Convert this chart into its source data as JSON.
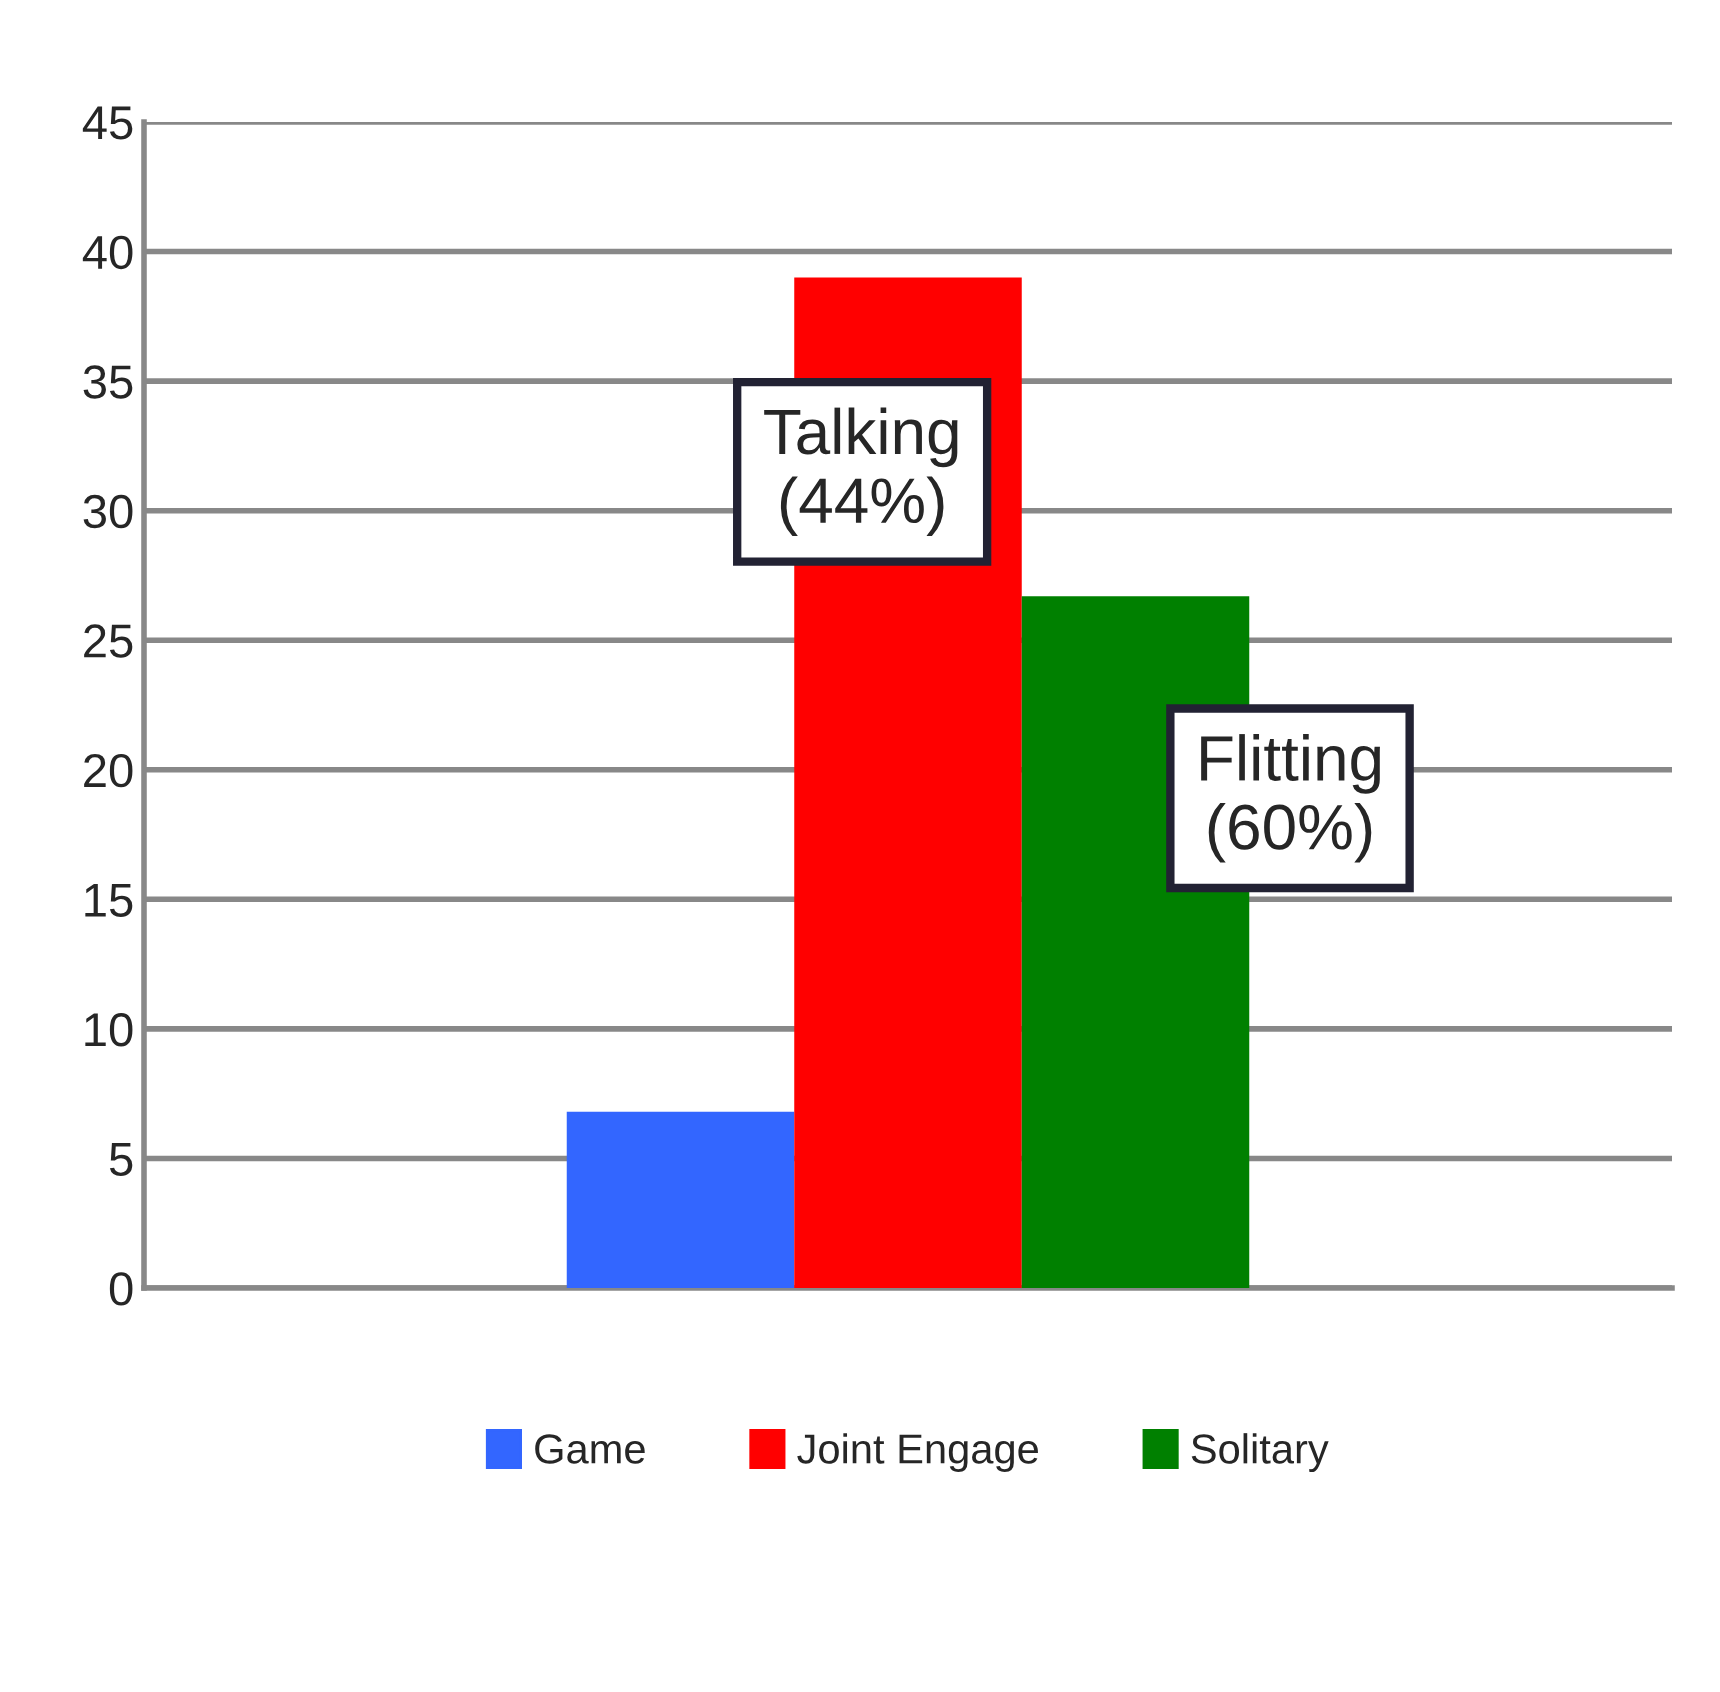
{
  "chart_data": {
    "type": "bar",
    "categories": [
      null
    ],
    "series": [
      {
        "name": "Game",
        "color": "#3366ff",
        "values": [
          6.8
        ]
      },
      {
        "name": "Joint Engage",
        "color": "#ff0000",
        "values": [
          39.0
        ]
      },
      {
        "name": "Solitary",
        "color": "#008000",
        "values": [
          26.7
        ]
      }
    ],
    "annotations": [
      "Talking\n(44%)",
      "Flitting\n(60%)"
    ],
    "ylim": [
      0,
      45
    ],
    "yticks": [
      0,
      5,
      10,
      15,
      20,
      25,
      30,
      35,
      40,
      45
    ],
    "grid": "y",
    "legend": "bottom"
  }
}
